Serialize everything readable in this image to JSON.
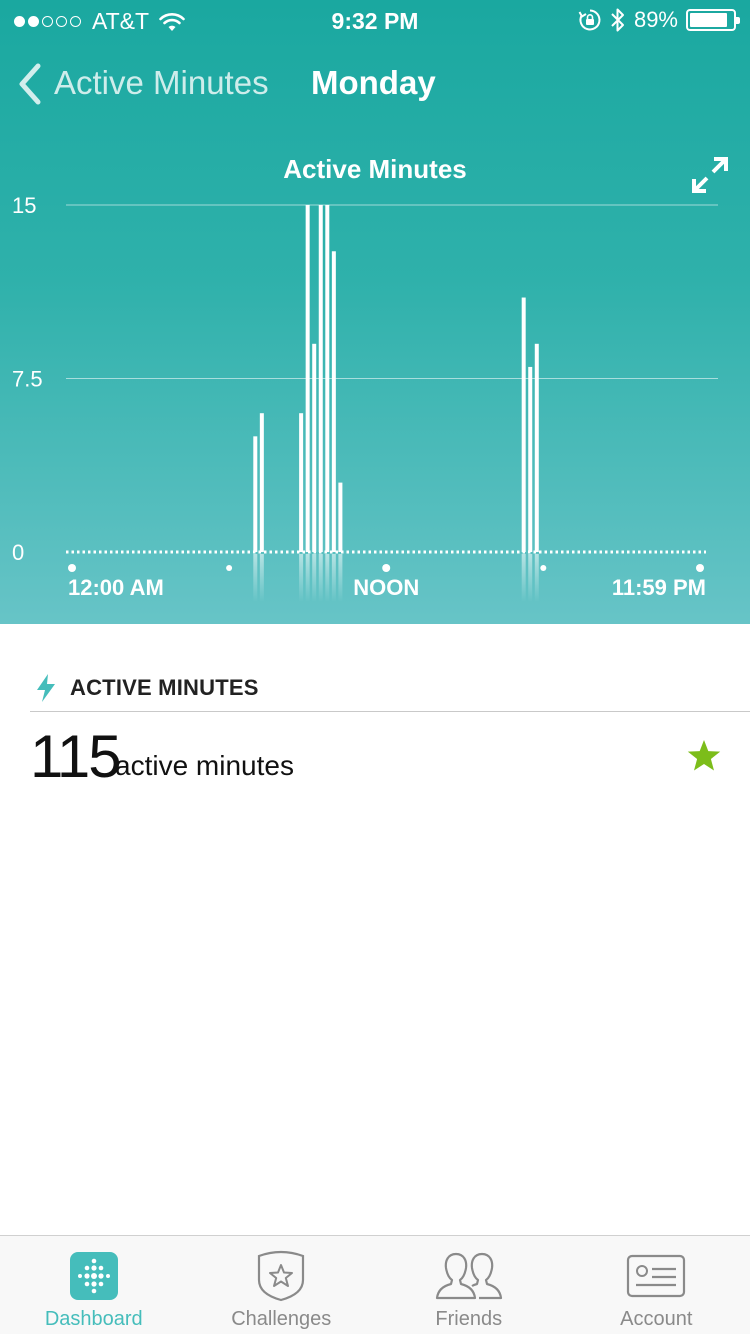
{
  "status_bar": {
    "carrier": "AT&T",
    "signal_bars_filled": 2,
    "signal_bars_total": 5,
    "time": "9:32 PM",
    "battery_percent": "89%",
    "battery_level": 0.89
  },
  "nav": {
    "back_label": "Active Minutes",
    "title": "Monday"
  },
  "chart_data": {
    "type": "bar",
    "title": "Active Minutes",
    "x_tick_labels": [
      "12:00 AM",
      "NOON",
      "11:59 PM"
    ],
    "y_ticks": [
      "15",
      "7.5",
      "0"
    ],
    "ylim": [
      0,
      15
    ],
    "grid": true,
    "x": [
      "7:00",
      "7:15",
      "8:45",
      "9:00",
      "9:15",
      "9:30",
      "9:45",
      "10:00",
      "10:15",
      "17:15",
      "17:30",
      "17:45"
    ],
    "values": [
      5,
      6,
      6,
      15,
      9,
      15,
      15,
      13,
      3,
      11,
      8,
      9
    ]
  },
  "summary": {
    "section_title": "ACTIVE MINUTES",
    "value": "115",
    "unit": "active minutes",
    "accent_color": "#7cbd1a"
  },
  "tabs": [
    {
      "label": "Dashboard",
      "icon": "dashboard-icon",
      "active": true
    },
    {
      "label": "Challenges",
      "icon": "badge-star-icon",
      "active": false
    },
    {
      "label": "Friends",
      "icon": "friends-icon",
      "active": false
    },
    {
      "label": "Account",
      "icon": "account-card-icon",
      "active": false
    }
  ],
  "colors": {
    "brand_teal": "#1aa8a0",
    "tab_active": "#45bdbb"
  }
}
